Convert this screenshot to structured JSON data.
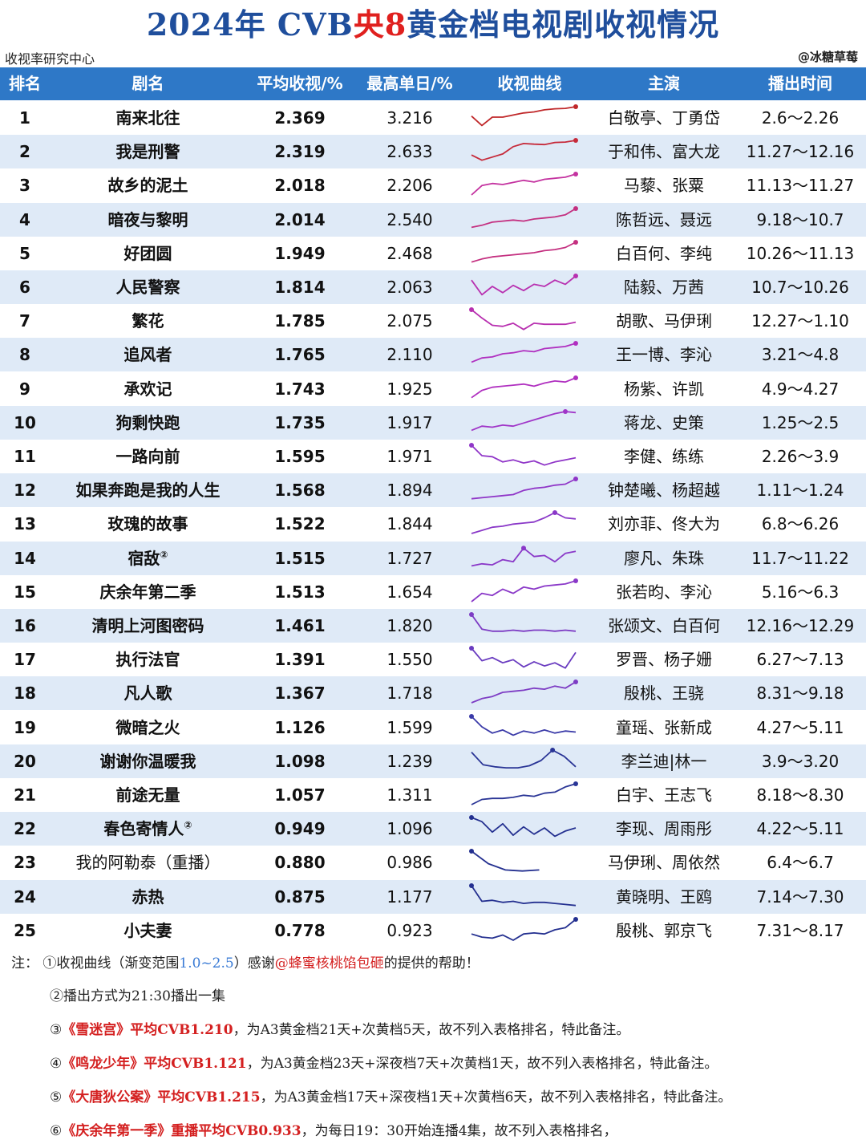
{
  "title": {
    "prefix": "2024年 CVB",
    "highlight": "央8",
    "suffix": "黄金档电视剧收视情况"
  },
  "source": "收视率研究中心",
  "credit": "@冰糖草莓",
  "headers": [
    "排名",
    "剧名",
    "平均收视/%",
    "最高单日/%",
    "收视曲线",
    "主演",
    "播出时间"
  ],
  "rows": [
    {
      "rank": "1",
      "name": "南来北往",
      "avg": "2.369",
      "max": "3.216",
      "stars": "白敬亭、丁勇岱",
      "dates": "2.6～2.26",
      "color": "#c0282a",
      "curve": [
        0.55,
        0.1,
        0.5,
        0.5,
        0.6,
        0.7,
        0.75,
        0.85,
        0.9,
        0.92,
        1.0
      ]
    },
    {
      "rank": "2",
      "name": "我是刑警",
      "avg": "2.319",
      "max": "2.633",
      "stars": "于和伟、富大龙",
      "dates": "11.27～12.16",
      "color": "#c62a3a",
      "curve": [
        0.3,
        0.05,
        0.2,
        0.35,
        0.7,
        0.85,
        0.82,
        0.8,
        0.9,
        0.92,
        1.0
      ]
    },
    {
      "rank": "3",
      "name": "故乡的泥土",
      "avg": "2.018",
      "max": "2.206",
      "stars": "马藜、张粟",
      "dates": "11.13～11.27",
      "color": "#c433a0",
      "curve": [
        0.0,
        0.45,
        0.55,
        0.5,
        0.6,
        0.7,
        0.62,
        0.75,
        0.8,
        0.85,
        1.0
      ]
    },
    {
      "rank": "4",
      "name": "暗夜与黎明",
      "avg": "2.014",
      "max": "2.540",
      "stars": "陈哲远、聂远",
      "dates": "9.18～10.7",
      "color": "#c43080",
      "curve": [
        0.1,
        0.2,
        0.35,
        0.4,
        0.45,
        0.4,
        0.5,
        0.55,
        0.6,
        0.7,
        1.0
      ]
    },
    {
      "rank": "5",
      "name": "好团圆",
      "avg": "1.949",
      "max": "2.468",
      "stars": "白百何、李纯",
      "dates": "10.26～11.13",
      "color": "#c43080",
      "curve": [
        0.05,
        0.2,
        0.3,
        0.35,
        0.4,
        0.45,
        0.5,
        0.6,
        0.65,
        0.75,
        1.0
      ]
    },
    {
      "rank": "6",
      "name": "人民警察",
      "avg": "1.814",
      "max": "2.063",
      "stars": "陆毅、万茜",
      "dates": "10.7～10.26",
      "color": "#b830b0",
      "curve": [
        0.8,
        0.1,
        0.5,
        0.2,
        0.55,
        0.3,
        0.6,
        0.5,
        0.8,
        0.6,
        1.0
      ]
    },
    {
      "rank": "7",
      "name": "繁花",
      "avg": "1.785",
      "max": "2.075",
      "stars": "胡歌、马伊琍",
      "dates": "12.27～1.10",
      "color": "#b830b0",
      "curve": [
        1.0,
        0.6,
        0.25,
        0.2,
        0.35,
        0.05,
        0.35,
        0.3,
        0.3,
        0.3,
        0.4
      ]
    },
    {
      "rank": "8",
      "name": "追风者",
      "avg": "1.765",
      "max": "2.110",
      "stars": "王一博、李沁",
      "dates": "3.21～4.8",
      "color": "#b030c0",
      "curve": [
        0.1,
        0.3,
        0.35,
        0.5,
        0.55,
        0.65,
        0.6,
        0.75,
        0.8,
        0.85,
        1.0
      ]
    },
    {
      "rank": "9",
      "name": "承欢记",
      "avg": "1.743",
      "max": "1.925",
      "stars": "杨紫、许凯",
      "dates": "4.9～4.27",
      "color": "#b030c0",
      "curve": [
        0.05,
        0.4,
        0.55,
        0.6,
        0.65,
        0.7,
        0.6,
        0.75,
        0.85,
        0.8,
        1.0
      ]
    },
    {
      "rank": "10",
      "name": "狗剩快跑",
      "avg": "1.735",
      "max": "1.917",
      "stars": "蒋龙、史策",
      "dates": "1.25～2.5",
      "color": "#a035c8",
      "curve": [
        0.1,
        0.3,
        0.25,
        0.35,
        0.3,
        0.45,
        0.6,
        0.75,
        0.9,
        1.0,
        0.95
      ]
    },
    {
      "rank": "11",
      "name": "一路向前",
      "avg": "1.595",
      "max": "1.971",
      "stars": "李健、练练",
      "dates": "2.26～3.9",
      "color": "#9036c8",
      "curve": [
        1.0,
        0.5,
        0.45,
        0.2,
        0.3,
        0.15,
        0.25,
        0.05,
        0.2,
        0.3,
        0.4
      ]
    },
    {
      "rank": "12",
      "name": "如果奔跑是我的人生",
      "avg": "1.568",
      "max": "1.894",
      "stars": "钟楚曦、杨超越",
      "dates": "1.11～1.24",
      "color": "#9036c8",
      "curve": [
        0.05,
        0.1,
        0.15,
        0.2,
        0.25,
        0.45,
        0.55,
        0.6,
        0.7,
        0.75,
        1.0
      ]
    },
    {
      "rank": "13",
      "name": "玫瑰的故事",
      "avg": "1.522",
      "max": "1.844",
      "stars": "刘亦菲、佟大为",
      "dates": "6.8～6.26",
      "color": "#8a38c8",
      "curve": [
        0.0,
        0.15,
        0.3,
        0.35,
        0.45,
        0.5,
        0.55,
        0.75,
        1.0,
        0.75,
        0.7
      ]
    },
    {
      "rank": "14",
      "name": "宿敌",
      "sup": "②",
      "avg": "1.515",
      "max": "1.727",
      "stars": "廖凡、朱珠",
      "dates": "11.7～11.22",
      "color": "#8a38c8",
      "curve": [
        0.1,
        0.2,
        0.15,
        0.4,
        0.3,
        0.95,
        0.55,
        0.6,
        0.3,
        0.7,
        0.8
      ]
    },
    {
      "rank": "15",
      "name": "庆余年第二季",
      "avg": "1.513",
      "max": "1.654",
      "stars": "张若昀、李沁",
      "dates": "5.16～6.3",
      "color": "#8a38c8",
      "curve": [
        0.0,
        0.4,
        0.3,
        0.6,
        0.4,
        0.7,
        0.6,
        0.75,
        0.8,
        0.85,
        1.0
      ]
    },
    {
      "rank": "16",
      "name": "清明上河图密码",
      "avg": "1.461",
      "max": "1.820",
      "stars": "张颂文、白百何",
      "dates": "12.16～12.29",
      "color": "#7d3cc4",
      "curve": [
        1.0,
        0.3,
        0.2,
        0.2,
        0.25,
        0.2,
        0.25,
        0.25,
        0.2,
        0.25,
        0.2
      ]
    },
    {
      "rank": "17",
      "name": "执行法官",
      "avg": "1.391",
      "max": "1.550",
      "stars": "罗晋、杨子姗",
      "dates": "6.27～7.13",
      "color": "#6a3cc0",
      "curve": [
        1.0,
        0.4,
        0.55,
        0.3,
        0.45,
        0.1,
        0.35,
        0.15,
        0.3,
        0.05,
        0.8
      ]
    },
    {
      "rank": "18",
      "name": "凡人歌",
      "avg": "1.367",
      "max": "1.718",
      "stars": "殷桃、王骁",
      "dates": "8.31～9.18",
      "color": "#7d3cc4",
      "curve": [
        0.0,
        0.2,
        0.3,
        0.5,
        0.55,
        0.6,
        0.7,
        0.65,
        0.8,
        0.7,
        1.0
      ]
    },
    {
      "rank": "19",
      "name": "微暗之火",
      "avg": "1.126",
      "max": "1.599",
      "stars": "童瑶、张新成",
      "dates": "4.27～5.11",
      "color": "#3a3aa8",
      "curve": [
        1.0,
        0.5,
        0.2,
        0.35,
        0.1,
        0.3,
        0.2,
        0.35,
        0.2,
        0.3,
        0.25
      ]
    },
    {
      "rank": "20",
      "name": "谢谢你温暖我",
      "avg": "1.098",
      "max": "1.239",
      "stars": "李兰迪|林一",
      "dates": "3.9～3.20",
      "color": "#2a3596",
      "curve": [
        0.9,
        0.3,
        0.2,
        0.15,
        0.15,
        0.25,
        0.5,
        1.0,
        0.7,
        0.2
      ]
    },
    {
      "rank": "21",
      "name": "前途无量",
      "avg": "1.057",
      "max": "1.311",
      "stars": "白宇、王志飞",
      "dates": "8.18～8.30",
      "color": "#2a3596",
      "curve": [
        0.0,
        0.25,
        0.3,
        0.3,
        0.35,
        0.45,
        0.4,
        0.55,
        0.6,
        0.85,
        1.0
      ]
    },
    {
      "rank": "22",
      "name": "春色寄情人",
      "sup": "②",
      "avg": "0.949",
      "max": "1.096",
      "stars": "李现、周雨彤",
      "dates": "4.22～5.11",
      "color": "#243090",
      "curve": [
        1.0,
        0.8,
        0.3,
        0.7,
        0.15,
        0.55,
        0.2,
        0.5,
        0.1,
        0.35,
        0.5
      ]
    },
    {
      "rank": "23",
      "name": "我的阿勒泰（重播）",
      "plain": true,
      "avg": "0.880",
      "max": "0.986",
      "stars": "马伊琍、周依然",
      "dates": "6.4～6.7",
      "color": "#243090",
      "curve": [
        1.0,
        0.4,
        0.1,
        0.05,
        0.1
      ]
    },
    {
      "rank": "24",
      "name": "赤热",
      "avg": "0.875",
      "max": "1.177",
      "stars": "黄晓明、王鸥",
      "dates": "7.14～7.30",
      "color": "#243090",
      "curve": [
        1.0,
        0.25,
        0.3,
        0.2,
        0.25,
        0.15,
        0.2,
        0.2,
        0.15,
        0.1,
        0.05
      ]
    },
    {
      "rank": "25",
      "name": "小夫妻",
      "avg": "0.778",
      "max": "0.923",
      "stars": "殷桃、郭京飞",
      "dates": "7.31～8.17",
      "color": "#243090",
      "curve": [
        0.3,
        0.15,
        0.1,
        0.25,
        0.0,
        0.3,
        0.35,
        0.3,
        0.5,
        0.6,
        1.0
      ]
    }
  ],
  "notes": {
    "n1_a": "注：  ①收视曲线（渐变范围",
    "n1_range": "1.0~2.5",
    "n1_b": "）感谢",
    "n1_handle": "@蜂蜜核桃馅包砸",
    "n1_c": "的提供的帮助！",
    "n2": "②播出方式为21:30播出一集",
    "n3_a": "③",
    "n3_red": "《雪迷宫》平均CVB1.210",
    "n3_b": "，为A3黄金档21天+次黄档5天，故不列入表格排名，特此备注。",
    "n4_a": "④",
    "n4_red": "《鸣龙少年》平均CVB1.121",
    "n4_b": "，为A3黄金档23天+深夜档7天+次黄档1天，故不列入表格排名，特此备注。",
    "n5_a": "⑤",
    "n5_red": "《大唐狄公案》平均CVB1.215",
    "n5_b": "，为A3黄金档17天+深夜档1天+次黄档6天，故不列入表格排名，特此备注。",
    "n6_a": "⑥",
    "n6_red": "《庆余年第一季》重播平均CVB0.933",
    "n6_b": "，为每日19：30开始连播4集，故不列入表格排名，"
  }
}
